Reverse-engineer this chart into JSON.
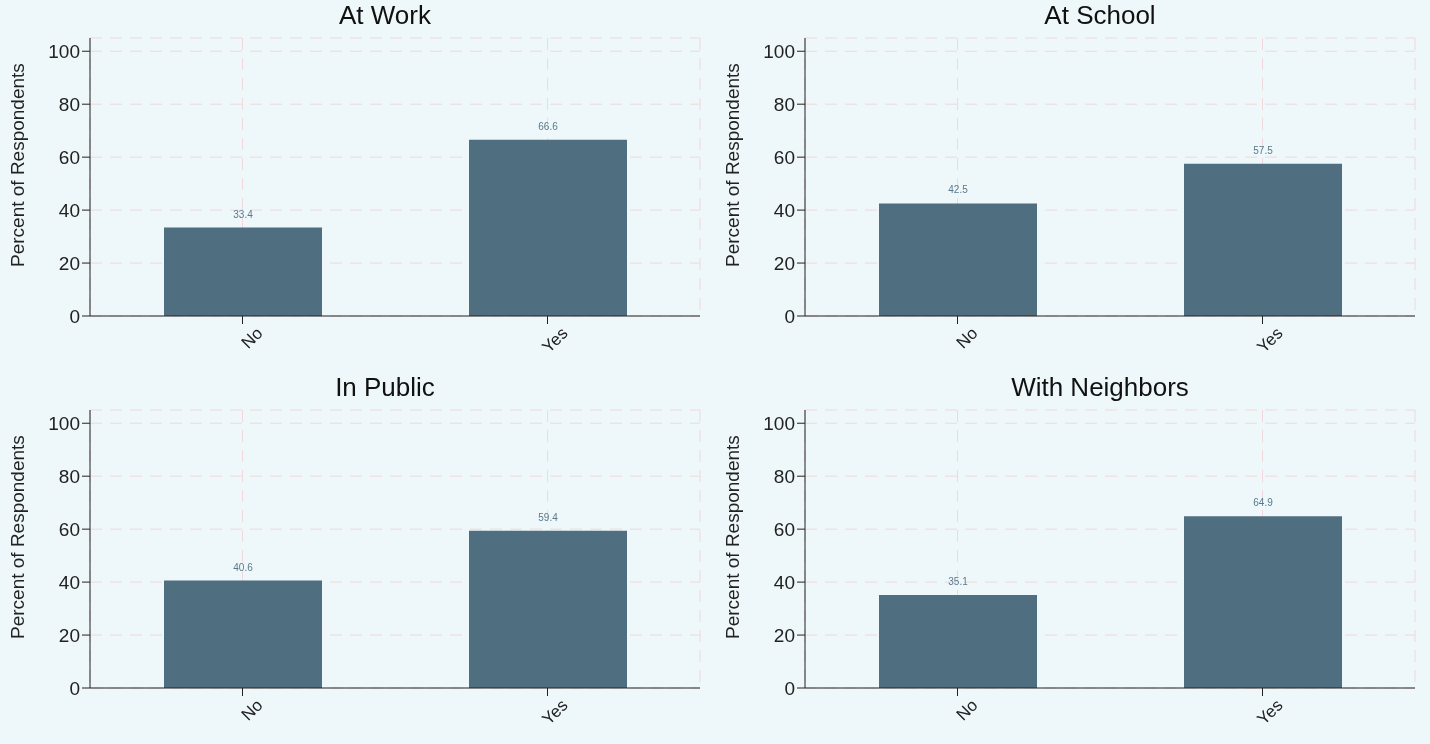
{
  "chart_data": [
    {
      "type": "bar",
      "title": "At Work",
      "ylabel": "Percent of Respondents",
      "categories": [
        "No",
        "Yes"
      ],
      "values": [
        33.4,
        66.6
      ],
      "color": "#4f6f80",
      "ylim": [
        0,
        105
      ],
      "yticks": [
        0,
        20,
        40,
        60,
        80,
        100
      ],
      "grid": true,
      "data_labels": true
    },
    {
      "type": "bar",
      "title": "At School",
      "ylabel": "Percent of Respondents",
      "categories": [
        "No",
        "Yes"
      ],
      "values": [
        42.5,
        57.5
      ],
      "color": "#4f6f80",
      "ylim": [
        0,
        105
      ],
      "yticks": [
        0,
        20,
        40,
        60,
        80,
        100
      ],
      "grid": true,
      "data_labels": true
    },
    {
      "type": "bar",
      "title": "In Public",
      "ylabel": "Percent of Respondents",
      "categories": [
        "No",
        "Yes"
      ],
      "values": [
        40.6,
        59.4
      ],
      "color": "#4f6f80",
      "ylim": [
        0,
        105
      ],
      "yticks": [
        0,
        20,
        40,
        60,
        80,
        100
      ],
      "grid": true,
      "data_labels": true
    },
    {
      "type": "bar",
      "title": "With Neighbors",
      "ylabel": "Percent of Respondents",
      "categories": [
        "No",
        "Yes"
      ],
      "values": [
        35.1,
        64.9
      ],
      "color": "#4f6f80",
      "ylim": [
        0,
        105
      ],
      "yticks": [
        0,
        20,
        40,
        60,
        80,
        100
      ],
      "grid": true,
      "data_labels": true
    }
  ]
}
